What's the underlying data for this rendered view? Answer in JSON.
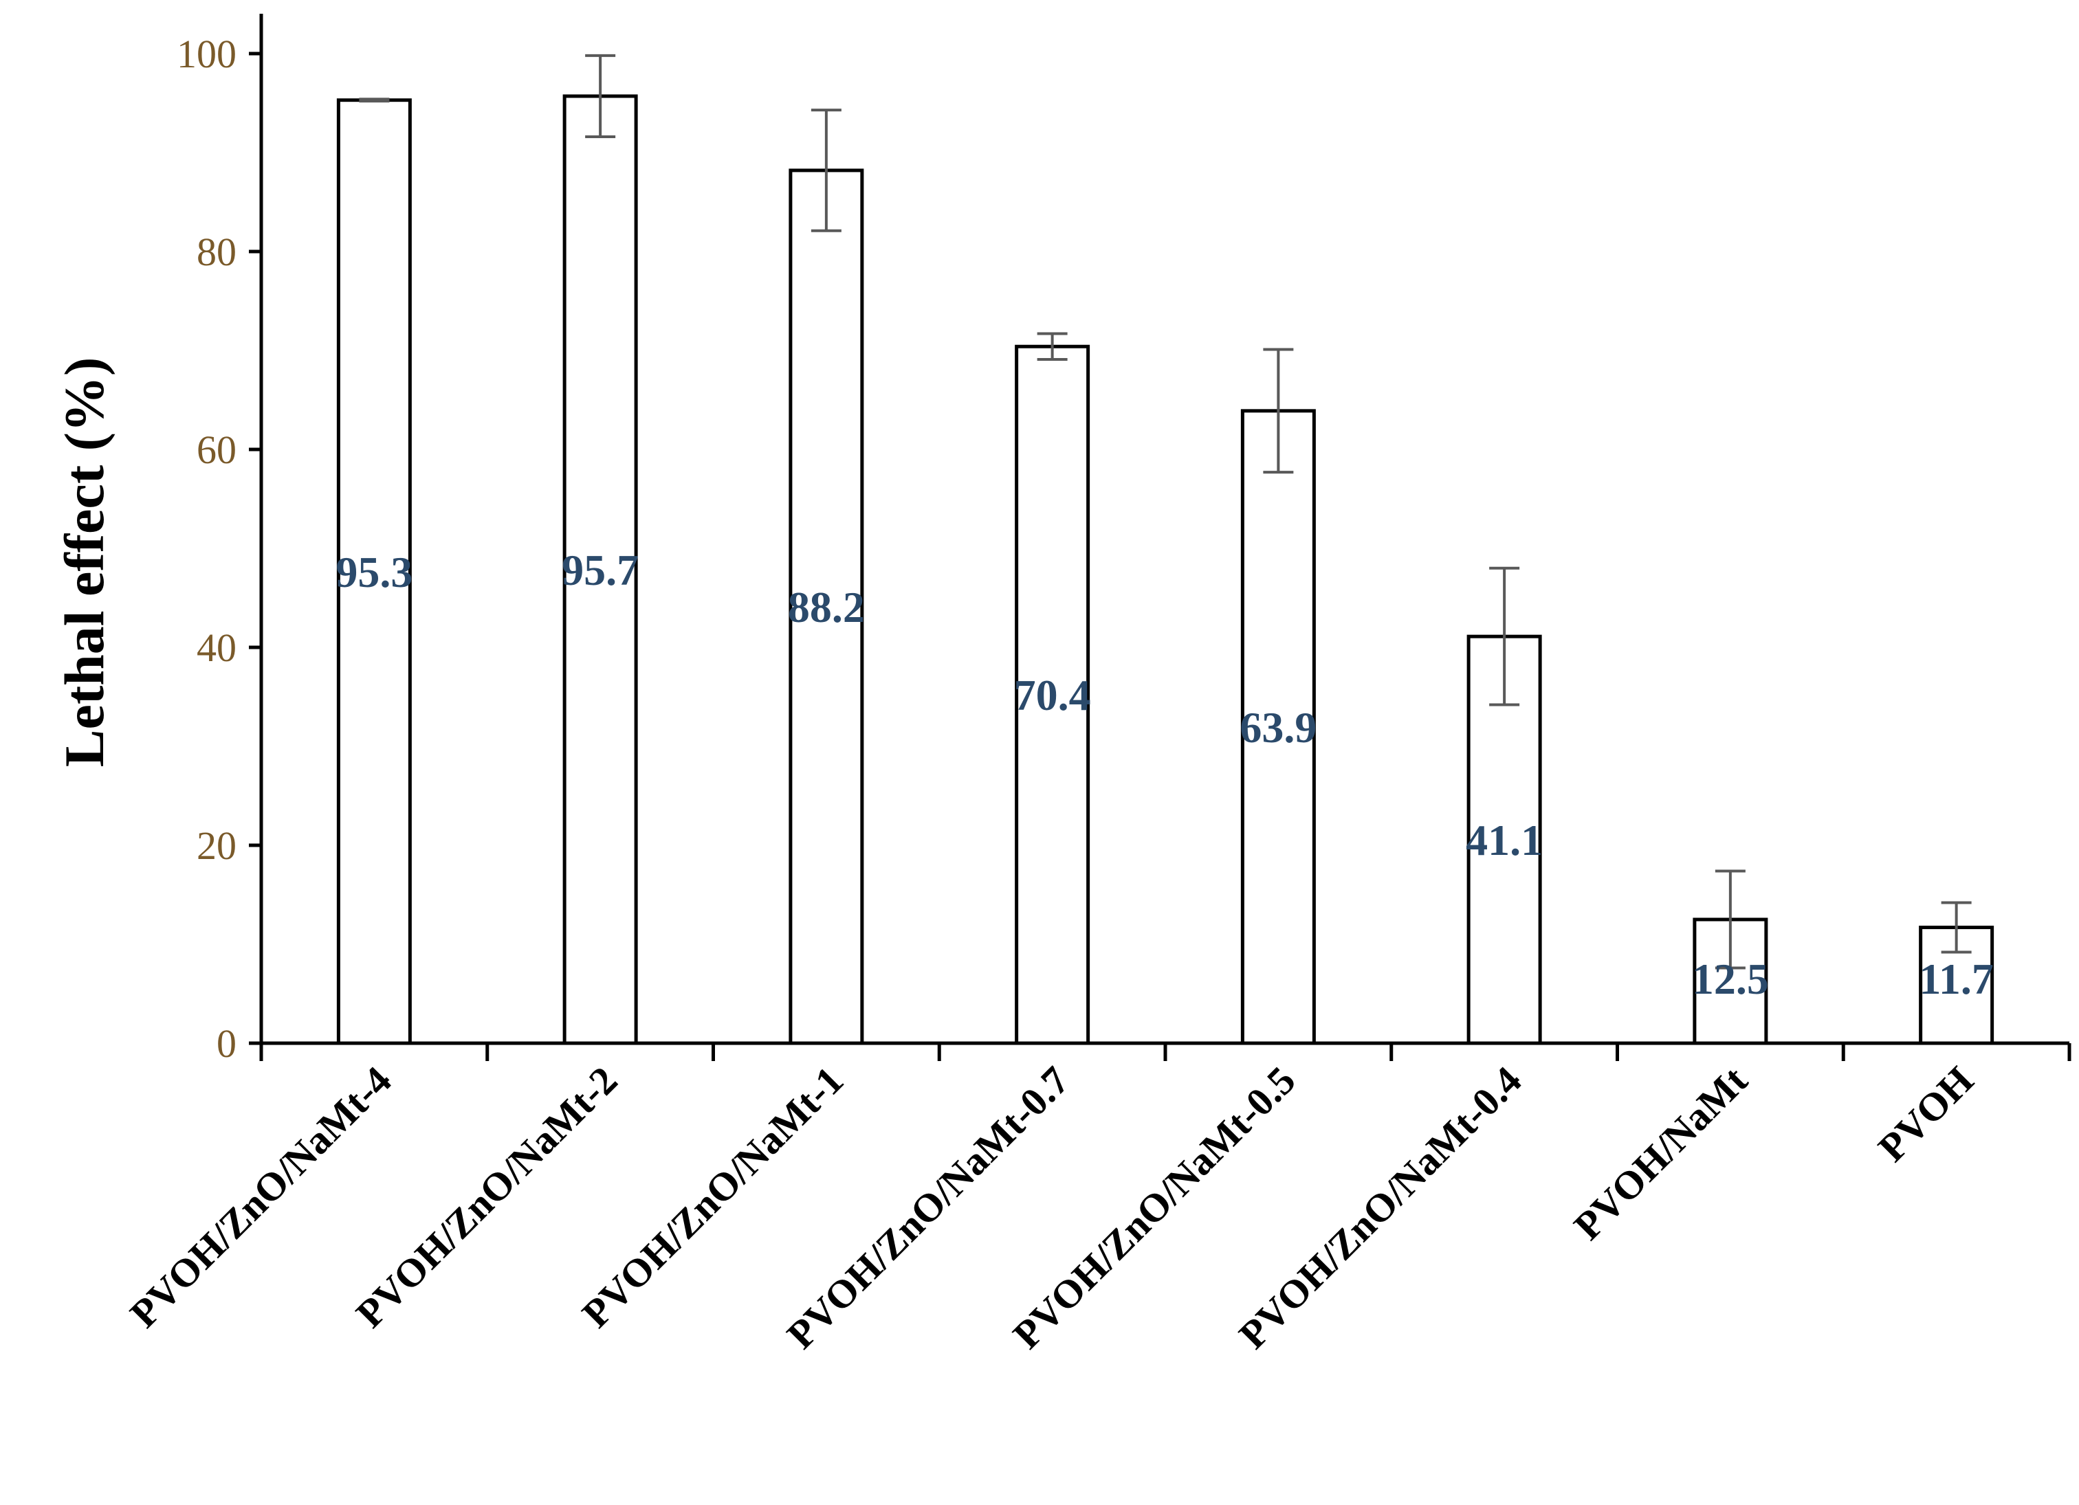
{
  "chart_data": {
    "type": "bar",
    "title": "",
    "xlabel": "",
    "ylabel": "Lethal effect (%)",
    "ylim": [
      0,
      100
    ],
    "yticks": [
      0,
      20,
      40,
      60,
      80,
      100
    ],
    "grid": false,
    "legend": "none",
    "categories": [
      "PVOH/ZnO/NaMt-4",
      "PVOH/ZnO/NaMt-2",
      "PVOH/ZnO/NaMt-1",
      "PVOH/ZnO/NaMt-0.7",
      "PVOH/ZnO/NaMt-0.5",
      "PVOH/ZnO/NaMt-0.4",
      "PVOH/NaMt",
      "PVOH"
    ],
    "values": [
      95.3,
      95.7,
      88.2,
      70.4,
      63.9,
      41.1,
      12.5,
      11.7
    ],
    "data_labels": [
      "95.3",
      "95.7",
      "88.2",
      "70.4",
      "63.9",
      "41.1",
      "12.5",
      "11.7"
    ],
    "error": [
      0.1,
      4.1,
      6.1,
      1.3,
      6.2,
      6.9,
      4.9,
      2.5
    ],
    "colors": {
      "bar_fill": "#ffffff",
      "bar_edge": "#000000",
      "error_bar": "#595959",
      "data_label": "#2b4a6b",
      "ytick_label": "#7a5a2a"
    }
  }
}
